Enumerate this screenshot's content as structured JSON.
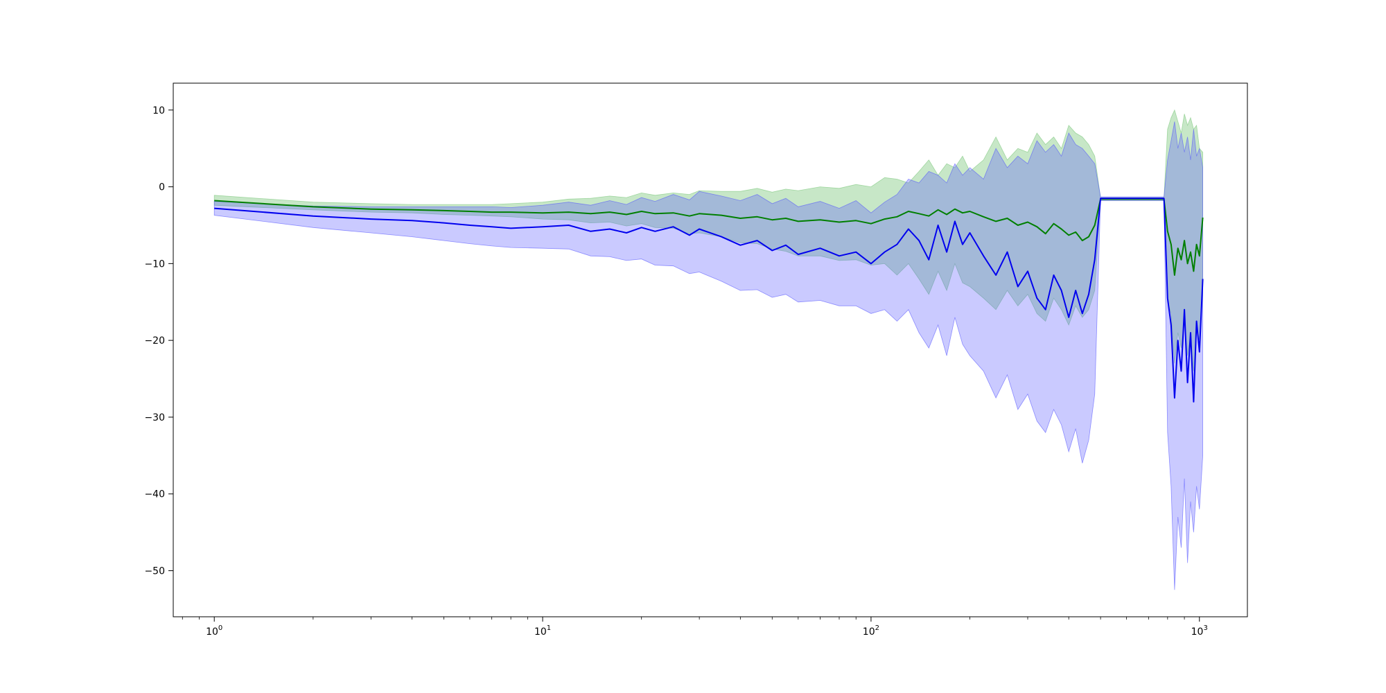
{
  "chart_data": {
    "type": "line",
    "title": "",
    "xlabel": "",
    "ylabel": "",
    "xscale": "log",
    "xlim": [
      0.75,
      1400
    ],
    "ylim": [
      -56,
      13.5
    ],
    "grid": false,
    "legend": "none",
    "x_ticks": [
      {
        "value": 1,
        "base": "10",
        "exp": "0"
      },
      {
        "value": 10,
        "base": "10",
        "exp": "1"
      },
      {
        "value": 100,
        "base": "10",
        "exp": "2"
      },
      {
        "value": 1000,
        "base": "10",
        "exp": "3"
      }
    ],
    "y_ticks": [
      {
        "value": 10,
        "label": "10"
      },
      {
        "value": 0,
        "label": "0"
      },
      {
        "value": -10,
        "label": "−10"
      },
      {
        "value": -20,
        "label": "−20"
      },
      {
        "value": -30,
        "label": "−30"
      },
      {
        "value": -40,
        "label": "−40"
      },
      {
        "value": -50,
        "label": "−50"
      }
    ],
    "series": [
      {
        "color": "#007f00",
        "band_color": "#74c474",
        "band_opacity": 0.4,
        "x": [
          1,
          2,
          3,
          4,
          5,
          6,
          7,
          8,
          10,
          12,
          14,
          16,
          18,
          20,
          22,
          25,
          28,
          30,
          35,
          40,
          45,
          50,
          55,
          60,
          70,
          80,
          90,
          100,
          110,
          120,
          130,
          140,
          150,
          160,
          170,
          180,
          190,
          200,
          220,
          240,
          260,
          280,
          300,
          320,
          340,
          360,
          380,
          400,
          420,
          440,
          460,
          480,
          500,
          780,
          800,
          820,
          840,
          860,
          880,
          900,
          920,
          940,
          960,
          980,
          1000,
          1024
        ],
        "mean": [
          -1.8,
          -2.6,
          -2.9,
          -3.0,
          -3.1,
          -3.2,
          -3.3,
          -3.3,
          -3.4,
          -3.3,
          -3.5,
          -3.3,
          -3.6,
          -3.2,
          -3.5,
          -3.4,
          -3.8,
          -3.5,
          -3.7,
          -4.1,
          -3.9,
          -4.3,
          -4.1,
          -4.5,
          -4.3,
          -4.6,
          -4.4,
          -4.8,
          -4.2,
          -3.9,
          -3.2,
          -3.5,
          -3.8,
          -3.0,
          -3.6,
          -2.9,
          -3.4,
          -3.2,
          -3.9,
          -4.5,
          -4.1,
          -5.0,
          -4.6,
          -5.2,
          -6.1,
          -4.8,
          -5.5,
          -6.3,
          -5.9,
          -7.0,
          -6.5,
          -5.0,
          -1.6,
          -1.6,
          -5.8,
          -7.5,
          -11.5,
          -8.0,
          -9.5,
          -7.0,
          -10.0,
          -8.5,
          -11.0,
          -7.5,
          -9.0,
          -4.0
        ],
        "lower": [
          -2.4,
          -3.0,
          -3.3,
          -3.4,
          -3.6,
          -3.7,
          -3.8,
          -3.9,
          -4.2,
          -4.3,
          -4.7,
          -4.6,
          -5.1,
          -4.8,
          -5.3,
          -5.4,
          -6.1,
          -6.0,
          -6.5,
          -7.3,
          -7.4,
          -8.1,
          -8.4,
          -9.0,
          -9.0,
          -9.6,
          -9.5,
          -10.2,
          -10.0,
          -11.5,
          -10.0,
          -12.0,
          -14.0,
          -11.0,
          -13.5,
          -10.0,
          -12.5,
          -13.0,
          -14.5,
          -16.0,
          -13.5,
          -15.5,
          -14.0,
          -16.5,
          -17.5,
          -14.5,
          -16.0,
          -18.0,
          -15.5,
          -17.0,
          -16.0,
          -13.5,
          -1.8,
          -1.8,
          -15.0,
          -16.5,
          -23.0,
          -19.0,
          -21.0,
          -17.5,
          -22.0,
          -19.5,
          -24.0,
          -18.0,
          -20.0,
          -14.0
        ],
        "upper": [
          -1.1,
          -2.0,
          -2.2,
          -2.3,
          -2.3,
          -2.3,
          -2.3,
          -2.2,
          -2.0,
          -1.6,
          -1.5,
          -1.2,
          -1.4,
          -0.8,
          -1.1,
          -0.8,
          -1.0,
          -0.5,
          -0.6,
          -0.6,
          -0.2,
          -0.7,
          -0.3,
          -0.5,
          0.0,
          -0.2,
          0.3,
          0.0,
          1.2,
          1.0,
          0.5,
          2.0,
          3.5,
          1.5,
          3.0,
          2.5,
          4.0,
          2.0,
          3.5,
          6.5,
          3.5,
          5.0,
          4.5,
          7.0,
          5.5,
          6.5,
          5.0,
          8.0,
          7.0,
          6.5,
          5.5,
          4.0,
          -1.4,
          -1.4,
          7.5,
          9.0,
          10.0,
          8.5,
          7.0,
          9.5,
          8.0,
          9.0,
          7.5,
          8.0,
          5.0,
          4.5
        ]
      },
      {
        "color": "#0000ee",
        "band_color": "#5050ff",
        "band_opacity": 0.3,
        "x": [
          1,
          2,
          3,
          4,
          5,
          6,
          7,
          8,
          10,
          12,
          14,
          16,
          18,
          20,
          22,
          25,
          28,
          30,
          35,
          40,
          45,
          50,
          55,
          60,
          70,
          80,
          90,
          100,
          110,
          120,
          130,
          140,
          150,
          160,
          170,
          180,
          190,
          200,
          220,
          240,
          260,
          280,
          300,
          320,
          340,
          360,
          380,
          400,
          420,
          440,
          460,
          480,
          500,
          780,
          800,
          820,
          840,
          860,
          880,
          900,
          920,
          940,
          960,
          980,
          1000,
          1024
        ],
        "mean": [
          -2.8,
          -3.8,
          -4.2,
          -4.4,
          -4.7,
          -5.0,
          -5.2,
          -5.4,
          -5.2,
          -5.0,
          -5.8,
          -5.5,
          -6.0,
          -5.3,
          -5.8,
          -5.2,
          -6.3,
          -5.5,
          -6.5,
          -7.6,
          -7.0,
          -8.3,
          -7.6,
          -8.8,
          -8.0,
          -9.0,
          -8.5,
          -10.0,
          -8.5,
          -7.5,
          -5.5,
          -7.0,
          -9.5,
          -5.0,
          -8.5,
          -4.5,
          -7.5,
          -6.0,
          -9.0,
          -11.5,
          -8.5,
          -13.0,
          -11.0,
          -14.5,
          -16.0,
          -11.5,
          -13.5,
          -17.0,
          -13.5,
          -16.5,
          -14.0,
          -9.5,
          -1.5,
          -1.5,
          -14.5,
          -18.0,
          -27.5,
          -20.0,
          -24.0,
          -16.0,
          -25.5,
          -19.0,
          -28.0,
          -17.5,
          -21.5,
          -12.0
        ],
        "lower": [
          -3.7,
          -5.3,
          -6.0,
          -6.5,
          -7.0,
          -7.4,
          -7.7,
          -7.9,
          -8.0,
          -8.1,
          -9.0,
          -9.1,
          -9.6,
          -9.4,
          -10.2,
          -10.3,
          -11.3,
          -11.1,
          -12.3,
          -13.5,
          -13.4,
          -14.4,
          -14.0,
          -15.0,
          -14.8,
          -15.5,
          -15.5,
          -16.5,
          -16.0,
          -17.5,
          -16.0,
          -19.0,
          -21.0,
          -18.0,
          -22.0,
          -17.0,
          -20.5,
          -22.0,
          -24.0,
          -27.5,
          -24.5,
          -29.0,
          -27.0,
          -30.5,
          -32.0,
          -29.0,
          -31.0,
          -34.5,
          -31.5,
          -36.0,
          -33.0,
          -27.0,
          -1.8,
          -1.8,
          -32.0,
          -39.0,
          -52.5,
          -43.0,
          -47.0,
          -38.0,
          -49.0,
          -41.0,
          -45.0,
          -39.0,
          -42.0,
          -35.0
        ],
        "upper": [
          -1.9,
          -2.5,
          -2.6,
          -2.6,
          -2.6,
          -2.6,
          -2.6,
          -2.7,
          -2.4,
          -2.0,
          -2.4,
          -1.8,
          -2.3,
          -1.4,
          -1.9,
          -1.0,
          -1.7,
          -0.6,
          -1.2,
          -1.8,
          -1.0,
          -2.2,
          -1.5,
          -2.6,
          -1.9,
          -2.8,
          -1.8,
          -3.4,
          -2.0,
          -1.0,
          1.0,
          0.5,
          2.0,
          1.5,
          0.5,
          3.0,
          1.5,
          2.5,
          1.0,
          5.0,
          2.5,
          4.0,
          3.0,
          6.0,
          4.5,
          5.5,
          4.0,
          7.0,
          5.5,
          5.0,
          4.0,
          3.0,
          -1.3,
          -1.3,
          3.5,
          6.0,
          8.5,
          5.0,
          7.0,
          4.5,
          6.5,
          3.5,
          7.5,
          4.0,
          5.0,
          2.5
        ]
      }
    ]
  }
}
